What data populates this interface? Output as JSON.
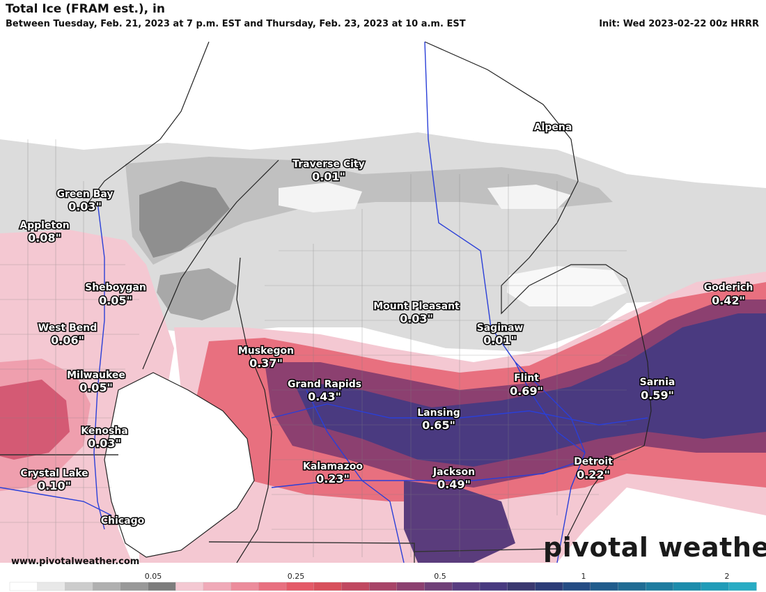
{
  "header": {
    "title": "Total Ice (FRAM est.), in",
    "subtitle": "Between Tuesday, Feb. 21, 2023 at 7 p.m. EST and Thursday, Feb. 23, 2023 at 10 a.m. EST",
    "init": "Init: Wed 2023-02-22 00z HRRR"
  },
  "footer": {
    "url": "www.pivotalweather.com",
    "brand": "pivotal weather"
  },
  "colorbar": {
    "ticks": [
      "0.05",
      "0.25",
      "0.5",
      "1",
      "2"
    ],
    "colors": [
      "#ffffff",
      "#e8e8e8",
      "#cccccc",
      "#b0b0b0",
      "#999999",
      "#7d7d7d",
      "#f4c8d2",
      "#f0aab8",
      "#ec8c9c",
      "#e87080",
      "#e45a68",
      "#d8505c",
      "#c04860",
      "#a84468",
      "#8c4070",
      "#704078",
      "#583c80",
      "#483a80",
      "#3a3870",
      "#2c3c78",
      "#244c84",
      "#205c8c",
      "#206c94",
      "#1e7ca0",
      "#1c8cac",
      "#209cb8",
      "#28acc4"
    ]
  },
  "cities": [
    {
      "name": "Green Bay",
      "value": "0.03\""
    },
    {
      "name": "Appleton",
      "value": "0.08\""
    },
    {
      "name": "Sheboygan",
      "value": "0.05\""
    },
    {
      "name": "West Bend",
      "value": "0.06\""
    },
    {
      "name": "Milwaukee",
      "value": "0.05\""
    },
    {
      "name": "Kenosha",
      "value": "0.03\""
    },
    {
      "name": "Crystal Lake",
      "value": "0.10\""
    },
    {
      "name": "Chicago",
      "value": ""
    },
    {
      "name": "Traverse City",
      "value": "0.01\""
    },
    {
      "name": "Alpena",
      "value": ""
    },
    {
      "name": "Mount Pleasant",
      "value": "0.03\""
    },
    {
      "name": "Saginaw",
      "value": "0.01\""
    },
    {
      "name": "Muskegon",
      "value": "0.37\""
    },
    {
      "name": "Grand Rapids",
      "value": "0.43\""
    },
    {
      "name": "Flint",
      "value": "0.69\""
    },
    {
      "name": "Lansing",
      "value": "0.65\""
    },
    {
      "name": "Sarnia",
      "value": "0.59\""
    },
    {
      "name": "Goderich",
      "value": "0.42\""
    },
    {
      "name": "Kalamazoo",
      "value": "0.23\""
    },
    {
      "name": "Jackson",
      "value": "0.49\""
    },
    {
      "name": "Detroit",
      "value": "0.22\""
    }
  ]
}
